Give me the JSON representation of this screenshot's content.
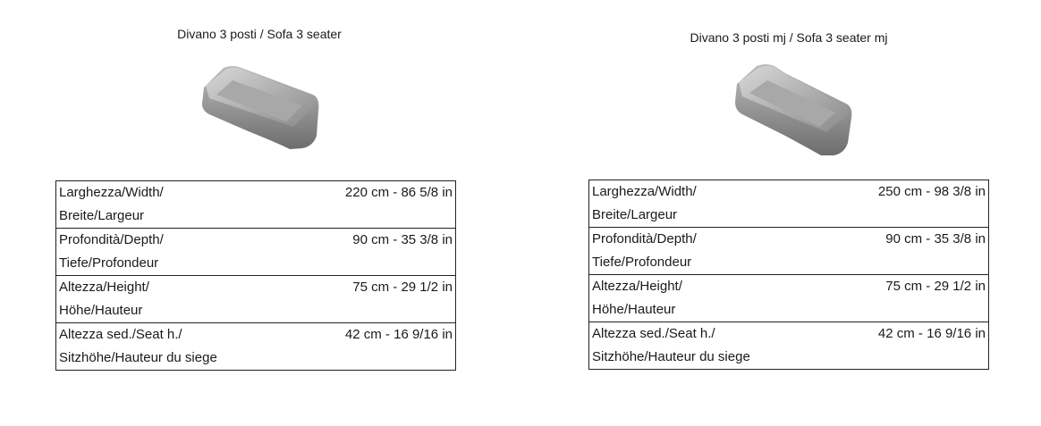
{
  "products": [
    {
      "title": "Divano 3 posti / Sofa 3 seater",
      "image": "sofa-3-seater-render",
      "specs": [
        {
          "label_line1": "Larghezza/Width/",
          "label_line2": "Breite/Largeur",
          "value": "220 cm - 86 5/8 in"
        },
        {
          "label_line1": "Profondità/Depth/",
          "label_line2": "Tiefe/Profondeur",
          "value": "90 cm - 35 3/8 in"
        },
        {
          "label_line1": "Altezza/Height/",
          "label_line2": "Höhe/Hauteur",
          "value": "75 cm - 29 1/2 in"
        },
        {
          "label_line1": "Altezza sed./Seat h./",
          "label_line2": "Sitzhöhe/Hauteur du siege",
          "value": "42 cm - 16 9/16 in"
        }
      ]
    },
    {
      "title": "Divano 3 posti mj / Sofa 3 seater mj",
      "image": "sofa-3-seater-mj-render",
      "specs": [
        {
          "label_line1": "Larghezza/Width/",
          "label_line2": "Breite/Largeur",
          "value": "250 cm - 98 3/8 in"
        },
        {
          "label_line1": "Profondità/Depth/",
          "label_line2": "Tiefe/Profondeur",
          "value": "90 cm - 35 3/8 in"
        },
        {
          "label_line1": "Altezza/Height/",
          "label_line2": "Höhe/Hauteur",
          "value": "75 cm - 29 1/2 in"
        },
        {
          "label_line1": "Altezza sed./Seat h./",
          "label_line2": "Sitzhöhe/Hauteur du siege",
          "value": "42 cm - 16 9/16 in"
        }
      ]
    }
  ]
}
